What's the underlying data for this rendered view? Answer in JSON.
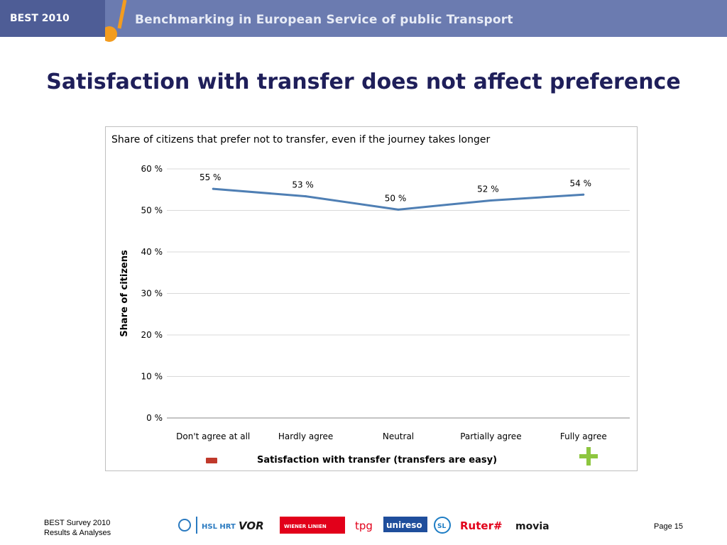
{
  "header": {
    "brand": "BEST 2010",
    "tagline": "Benchmarking in European Service of public Transport"
  },
  "slide": {
    "title": "Satisfaction with transfer does not affect preference"
  },
  "chart_data": {
    "type": "line",
    "title": "Share of citizens that prefer not to transfer, even if the journey takes longer",
    "xlabel": "Satisfaction with transfer (transfers are easy)",
    "ylabel": "Share of citizens",
    "categories": [
      "Don't agree at all",
      "Hardly agree",
      "Neutral",
      "Partially agree",
      "Fully agree"
    ],
    "series": [
      {
        "values": [
          55.2,
          53.4,
          50.2,
          52.4,
          53.8
        ],
        "labels": [
          "55 %",
          "53 %",
          "50 %",
          "52 %",
          "54 %"
        ],
        "color": "#4f7fb4"
      }
    ],
    "yticks": [
      "0 %",
      "10 %",
      "20 %",
      "30 %",
      "40 %",
      "50 %",
      "60 %"
    ],
    "ylim": [
      0,
      60
    ],
    "grid": true,
    "legend": "none",
    "scale_markers": {
      "low": "minus",
      "high": "plus"
    }
  },
  "footer": {
    "line1": "BEST Survey 2010",
    "line2": "Results & Analyses",
    "page": "Page 15",
    "logos": [
      "HSL HRT",
      "VOR",
      "WIENER LINIEN",
      "tpg",
      "unireso",
      "SL",
      "Ruter#",
      "movia"
    ]
  },
  "colors": {
    "header": "#6b7bb0",
    "title": "#1f1f5a",
    "accent_orange": "#f39c1f",
    "line": "#4f7fb4",
    "minus": "#c0392b",
    "plus": "#8dc63f"
  }
}
